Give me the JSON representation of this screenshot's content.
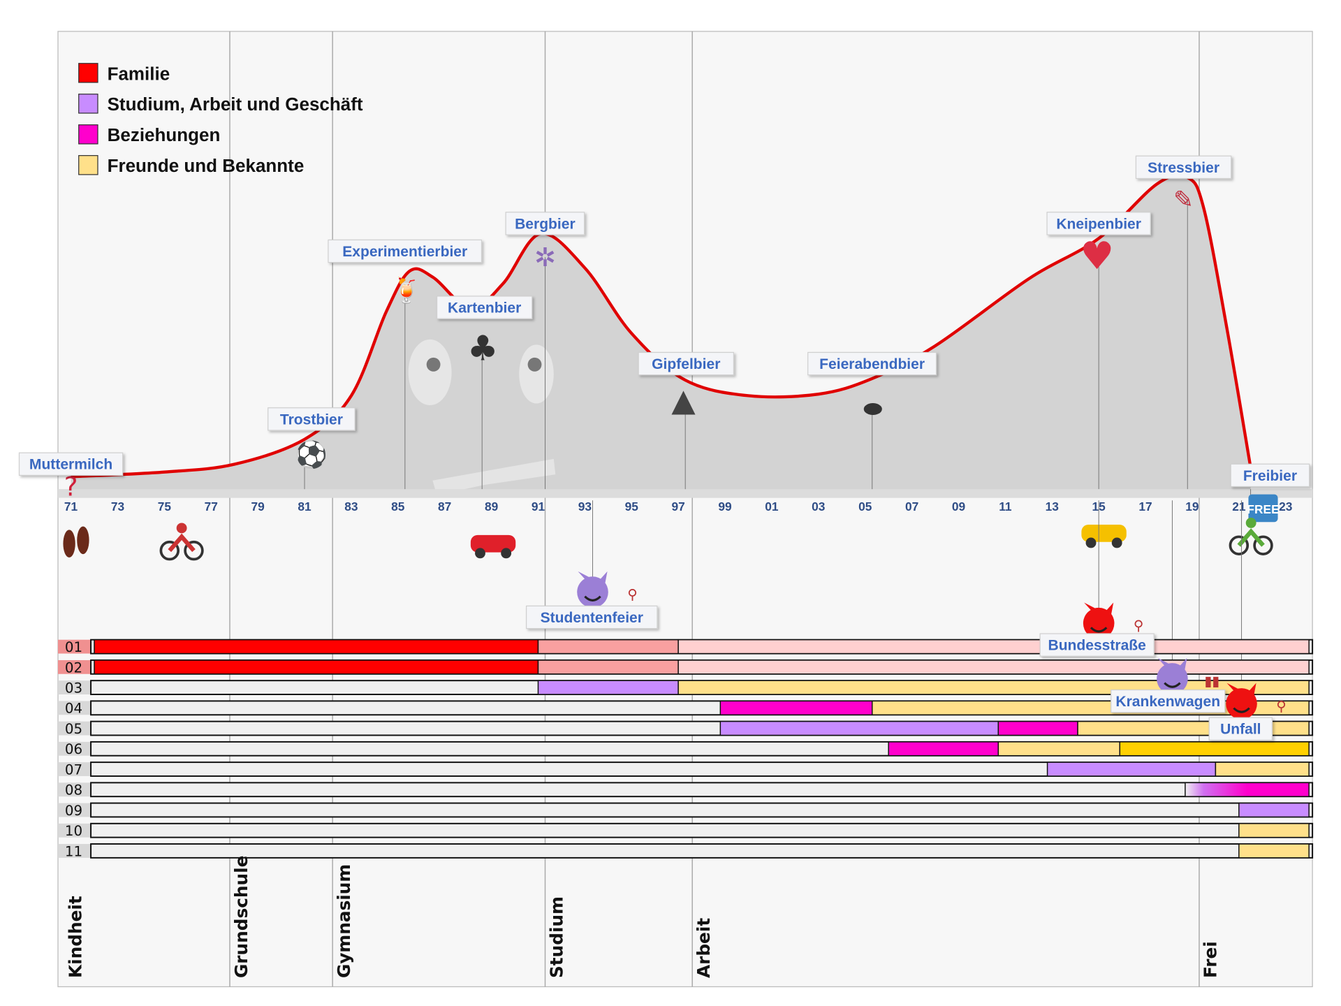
{
  "chart_data": {
    "type": "area",
    "title": "",
    "xlabel": "",
    "ylabel": "",
    "xlim": [
      1971,
      2024
    ],
    "ylim": [
      0,
      100
    ],
    "grid": false,
    "legend_position": "top-left",
    "colors": {
      "curve": "#e00000",
      "area": "#d3d3d3",
      "Familie": "#ff0000",
      "Studium": "#c88cff",
      "Beziehungen": "#ff00cc",
      "Freunde": "#ffe08a",
      "Freunde_stark": "#ffd000",
      "Familie_hell": "#f9a0a0",
      "Familie_sehr_hell": "#ffd0d0",
      "empty": "#f0f0f0"
    },
    "legend": [
      {
        "key": "Familie",
        "label": "Familie",
        "color": "#ff0000"
      },
      {
        "key": "Studium",
        "label": "Studium, Arbeit und Geschäft",
        "color": "#c88cff"
      },
      {
        "key": "Beziehungen",
        "label": "Beziehungen",
        "color": "#ff00cc"
      },
      {
        "key": "Freunde",
        "label": "Freunde und Bekannte",
        "color": "#ffe08a"
      }
    ],
    "x_ticks": [
      "71",
      "73",
      "75",
      "77",
      "79",
      "81",
      "83",
      "85",
      "87",
      "89",
      "91",
      "93",
      "95",
      "97",
      "99",
      "01",
      "03",
      "05",
      "07",
      "09",
      "11",
      "13",
      "15",
      "17",
      "19",
      "21",
      "23"
    ],
    "curve": [
      [
        1971,
        4
      ],
      [
        1975,
        5.5
      ],
      [
        1978,
        8
      ],
      [
        1981,
        16
      ],
      [
        1983,
        30
      ],
      [
        1984.5,
        57
      ],
      [
        1985.5,
        70
      ],
      [
        1986.5,
        68
      ],
      [
        1988.1,
        58
      ],
      [
        1989.5,
        66
      ],
      [
        1991.1,
        82
      ],
      [
        1993,
        71
      ],
      [
        1995,
        50
      ],
      [
        1997.3,
        35
      ],
      [
        2000,
        30
      ],
      [
        2003,
        30.5
      ],
      [
        2005.3,
        35.5
      ],
      [
        2008,
        46
      ],
      [
        2012,
        67.5
      ],
      [
        2015,
        80.5
      ],
      [
        2017.5,
        98
      ],
      [
        2018.8,
        100
      ],
      [
        2019.5,
        90
      ],
      [
        2020.5,
        51
      ],
      [
        2021.5,
        7
      ]
    ],
    "events_top": [
      {
        "year": 1971,
        "label": "Muttermilch",
        "icon": "question-mark-icon"
      },
      {
        "year": 1981,
        "label": "Trostbier",
        "icon": "soccer-ball-icon"
      },
      {
        "year": 1985.3,
        "label": "Experimentierbier",
        "icon": "tropical-drink-icon"
      },
      {
        "year": 1988.6,
        "label": "Kartenbier",
        "icon": "club-suit-icon"
      },
      {
        "year": 1991.3,
        "label": "Bergbier",
        "icon": "ferris-wheel-icon"
      },
      {
        "year": 1997.3,
        "label": "Gipfelbier",
        "icon": "mountain-icon"
      },
      {
        "year": 2005.3,
        "label": "Feierabendbier",
        "icon": "joystick-icon"
      },
      {
        "year": 2015,
        "label": "Kneipenbier",
        "icon": "heart-icon"
      },
      {
        "year": 2018.8,
        "label": "Stressbier",
        "icon": "syringe-icon"
      },
      {
        "year": 2021.5,
        "label": "Freibier",
        "icon": "free-icon",
        "badge": "FREE"
      }
    ],
    "events_bottom": [
      {
        "year": 1993,
        "label": "Studentenfeier",
        "icon": "purple-devil-icon",
        "extra_icon": "cyclist-icon"
      },
      {
        "year": 2015,
        "label": "Bundesstraße",
        "icon": "red-devil-icon",
        "extra_icon": "cyclist-icon"
      },
      {
        "year": 2018.5,
        "label": "Krankenwagen",
        "icon": "purple-devil-icon",
        "extra_icon": "footprints-icon"
      },
      {
        "year": 2021,
        "label": "Unfall",
        "icon": "red-devil-icon",
        "extra_icon": "motorcycle-icon"
      }
    ],
    "transport_icons": [
      {
        "year": 1971.3,
        "icon": "footprints-icon"
      },
      {
        "year": 1975.8,
        "icon": "cyclist-icon"
      },
      {
        "year": 1989,
        "icon": "car-icon"
      },
      {
        "year": 2015.2,
        "icon": "taxi-icon"
      },
      {
        "year": 2021.5,
        "icon": "motorcycle-icon"
      }
    ],
    "phases": [
      {
        "label": "Kindheit",
        "start": 1971
      },
      {
        "label": "Grundschule",
        "start": 1977.8
      },
      {
        "label": "Gymnasium",
        "start": 1982.2
      },
      {
        "label": "Studium",
        "start": 1991.3
      },
      {
        "label": "Arbeit",
        "start": 1997.6
      },
      {
        "label": "Frei",
        "start": 2019.3
      }
    ],
    "rows": [
      {
        "label": "01",
        "segments": [
          [
            1972,
            1991,
            "Familie"
          ],
          [
            1991,
            1997,
            "Familie_hell"
          ],
          [
            1997,
            2024,
            "Familie_sehr_hell"
          ]
        ]
      },
      {
        "label": "02",
        "segments": [
          [
            1972,
            1991,
            "Familie"
          ],
          [
            1991,
            1997,
            "Familie_hell"
          ],
          [
            1997,
            2024,
            "Familie_sehr_hell"
          ]
        ]
      },
      {
        "label": "03",
        "segments": [
          [
            1991,
            1997,
            "Studium"
          ],
          [
            1997,
            2024,
            "Freunde"
          ]
        ]
      },
      {
        "label": "04",
        "segments": [
          [
            1998.8,
            2005.3,
            "Beziehungen"
          ],
          [
            2005.3,
            2024,
            "Freunde"
          ]
        ]
      },
      {
        "label": "05",
        "segments": [
          [
            1998.8,
            2010.7,
            "Studium"
          ],
          [
            2010.7,
            2014.1,
            "Beziehungen"
          ],
          [
            2014.1,
            2024,
            "Freunde"
          ]
        ]
      },
      {
        "label": "06",
        "segments": [
          [
            2006,
            2010.7,
            "Beziehungen"
          ],
          [
            2010.7,
            2015.9,
            "Freunde"
          ],
          [
            2015.9,
            2024,
            "Freunde_stark"
          ]
        ]
      },
      {
        "label": "07",
        "segments": [
          [
            2012.8,
            2020,
            "Studium"
          ],
          [
            2020,
            2024,
            "Freunde"
          ]
        ]
      },
      {
        "label": "08",
        "segments": [
          [
            2018.7,
            2024,
            "Studium-Beziehungen"
          ]
        ]
      },
      {
        "label": "09",
        "segments": [
          [
            2021,
            2024,
            "Studium"
          ]
        ]
      },
      {
        "label": "10",
        "segments": [
          [
            2021,
            2024,
            "Freunde"
          ]
        ]
      },
      {
        "label": "11",
        "segments": [
          [
            2021,
            2024,
            "Freunde"
          ]
        ]
      }
    ]
  }
}
